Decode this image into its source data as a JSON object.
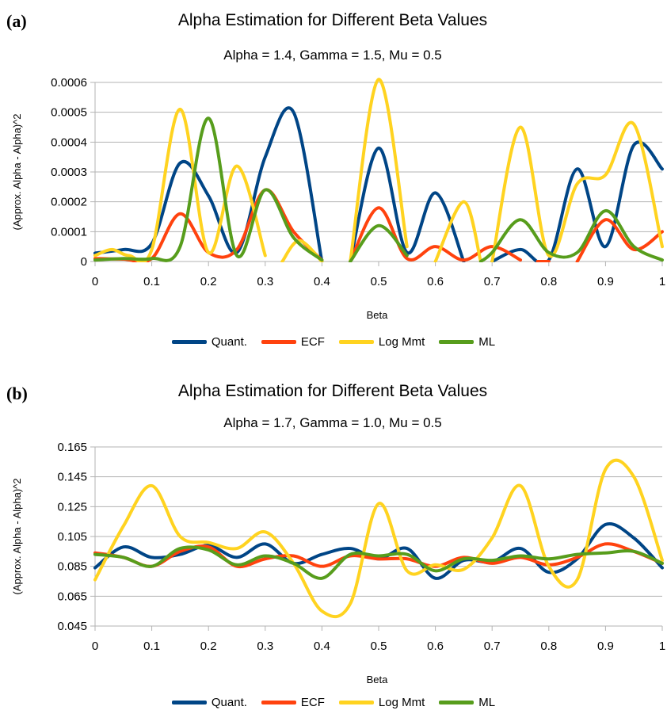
{
  "chart_data": [
    {
      "type": "line",
      "panel_label": "(a)",
      "title": "Alpha Estimation for Different Beta Values",
      "subtitle": "Alpha = 1.4, Gamma = 1.5, Mu = 0.5",
      "xlabel": "Beta",
      "ylabel": "(Approx. Alpha - Alpha)^2",
      "xlim": [
        0,
        1
      ],
      "ylim": [
        0,
        0.0006
      ],
      "xticks": [
        "0",
        "0.1",
        "0.2",
        "0.3",
        "0.4",
        "0.5",
        "0.6",
        "0.7",
        "0.8",
        "0.9",
        "1"
      ],
      "yticks": [
        "0",
        "0.0001",
        "0.0002",
        "0.0003",
        "0.0004",
        "0.0005",
        "0.0006"
      ],
      "grid": true,
      "legend_position": "bottom",
      "series": [
        {
          "name": "Quant.",
          "color": "#004586",
          "x": [
            0,
            0.05,
            0.1,
            0.15,
            0.2,
            0.25,
            0.3,
            0.35,
            0.4,
            null,
            0.45,
            0.5,
            0.55,
            0.6,
            0.65,
            null,
            0.7,
            0.75,
            0.8,
            0.85,
            0.9,
            0.95,
            1
          ],
          "y": [
            2.8e-05,
            4e-05,
            6e-05,
            0.00033,
            0.00022,
            3e-05,
            0.00035,
            0.0005,
            0,
            null,
            0,
            0.00038,
            3e-05,
            0.00023,
            0,
            null,
            0,
            4e-05,
            5e-06,
            0.00031,
            5e-05,
            0.00039,
            0.00031
          ]
        },
        {
          "name": "ECF",
          "color": "#ff420e",
          "x": [
            0,
            0.05,
            0.1,
            0.15,
            0.2,
            0.25,
            0.3,
            0.35,
            0.4,
            null,
            0.45,
            0.5,
            0.55,
            0.6,
            0.65,
            0.7,
            0.75,
            null,
            0.78,
            0.8,
            null,
            0.85,
            0.9,
            0.95,
            1
          ],
          "y": [
            1e-05,
            8e-06,
            1e-05,
            0.00016,
            3e-05,
            4e-05,
            0.00024,
            0.0001,
            5e-06,
            null,
            0,
            0.00018,
            1e-05,
            5e-05,
            5e-06,
            5e-05,
            5e-06,
            null,
            0,
            0,
            null,
            0,
            0.00014,
            4e-05,
            0.0001
          ]
        },
        {
          "name": "Log Mmt",
          "color": "#ffd320",
          "x": [
            0,
            0.03,
            0.06,
            0.1,
            0.15,
            0.2,
            0.25,
            0.3,
            null,
            0.33,
            0.36,
            0.4,
            null,
            0.45,
            0.5,
            0.55,
            null,
            0.6,
            0.65,
            0.68,
            null,
            0.7,
            0.75,
            0.8,
            0.85,
            0.9,
            0.95,
            1
          ],
          "y": [
            2e-05,
            4e-05,
            2e-05,
            4e-05,
            0.00051,
            3e-05,
            0.00032,
            2e-05,
            null,
            0,
            7e-05,
            0,
            null,
            0,
            0.00061,
            5e-05,
            null,
            0,
            0.0002,
            0,
            null,
            0,
            0.00045,
            2e-05,
            0.00026,
            0.00029,
            0.00046,
            5e-05
          ]
        },
        {
          "name": "ML",
          "color": "#579d1c",
          "x": [
            0,
            0.05,
            0.1,
            0.15,
            0.2,
            0.25,
            0.3,
            0.35,
            0.4,
            null,
            0.45,
            0.5,
            0.55,
            null,
            0.68,
            0.7,
            0.75,
            0.8,
            0.85,
            0.9,
            0.95,
            1
          ],
          "y": [
            5e-06,
            1e-05,
            1e-05,
            5e-05,
            0.00048,
            2e-05,
            0.00024,
            8e-05,
            5e-06,
            null,
            0,
            0.00012,
            2e-05,
            null,
            0,
            3e-05,
            0.00014,
            3e-05,
            3e-05,
            0.00017,
            5e-05,
            5e-06
          ]
        }
      ],
      "xlabel_bind": "Beta"
    },
    {
      "type": "line",
      "panel_label": "(b)",
      "title": "Alpha Estimation for Different Beta Values",
      "subtitle": "Alpha = 1.7, Gamma = 1.0, Mu = 0.5",
      "xlabel": "Beta",
      "ylabel": "(Approx. Alpha - Alpha)^2",
      "xlim": [
        0,
        1
      ],
      "ylim": [
        0.045,
        0.165
      ],
      "xticks": [
        "0",
        "0.1",
        "0.2",
        "0.3",
        "0.4",
        "0.5",
        "0.6",
        "0.7",
        "0.8",
        "0.9",
        "1"
      ],
      "yticks": [
        "0.045",
        "0.065",
        "0.085",
        "0.105",
        "0.125",
        "0.145",
        "0.165"
      ],
      "grid": true,
      "legend_position": "bottom",
      "series": [
        {
          "name": "Quant.",
          "color": "#004586",
          "x": [
            0,
            0.05,
            0.1,
            0.15,
            0.2,
            0.25,
            0.3,
            0.35,
            0.4,
            0.45,
            0.5,
            0.55,
            0.6,
            0.65,
            0.7,
            0.75,
            0.8,
            0.85,
            0.9,
            0.95,
            1
          ],
          "y": [
            0.084,
            0.098,
            0.091,
            0.093,
            0.099,
            0.091,
            0.1,
            0.087,
            0.093,
            0.097,
            0.09,
            0.097,
            0.077,
            0.089,
            0.088,
            0.097,
            0.081,
            0.09,
            0.113,
            0.104,
            0.084
          ]
        },
        {
          "name": "ECF",
          "color": "#ff420e",
          "x": [
            0,
            0.05,
            0.1,
            0.15,
            0.2,
            0.25,
            0.3,
            0.35,
            0.4,
            0.45,
            0.5,
            0.55,
            0.6,
            0.65,
            0.7,
            0.75,
            0.8,
            0.85,
            0.9,
            0.95,
            1
          ],
          "y": [
            0.094,
            0.091,
            0.085,
            0.095,
            0.098,
            0.085,
            0.09,
            0.092,
            0.085,
            0.092,
            0.09,
            0.09,
            0.085,
            0.091,
            0.087,
            0.091,
            0.086,
            0.091,
            0.1,
            0.095,
            0.087
          ]
        },
        {
          "name": "Log Mmt",
          "color": "#ffd320",
          "x": [
            0,
            0.05,
            0.1,
            0.15,
            0.2,
            0.25,
            0.3,
            0.35,
            0.4,
            0.45,
            0.5,
            0.55,
            0.6,
            0.65,
            0.7,
            0.75,
            0.8,
            0.85,
            0.9,
            0.95,
            1
          ],
          "y": [
            0.076,
            0.112,
            0.139,
            0.105,
            0.101,
            0.097,
            0.108,
            0.087,
            0.055,
            0.06,
            0.127,
            0.082,
            0.086,
            0.083,
            0.104,
            0.139,
            0.085,
            0.076,
            0.15,
            0.145,
            0.089
          ]
        },
        {
          "name": "ML",
          "color": "#579d1c",
          "x": [
            0,
            0.05,
            0.1,
            0.15,
            0.2,
            0.25,
            0.3,
            0.35,
            0.4,
            0.45,
            0.5,
            0.55,
            0.6,
            0.65,
            0.7,
            0.75,
            0.8,
            0.85,
            0.9,
            0.95,
            1
          ],
          "y": [
            0.093,
            0.091,
            0.085,
            0.097,
            0.096,
            0.086,
            0.092,
            0.087,
            0.077,
            0.093,
            0.092,
            0.093,
            0.082,
            0.09,
            0.089,
            0.092,
            0.09,
            0.093,
            0.094,
            0.095,
            0.087
          ]
        }
      ]
    }
  ]
}
